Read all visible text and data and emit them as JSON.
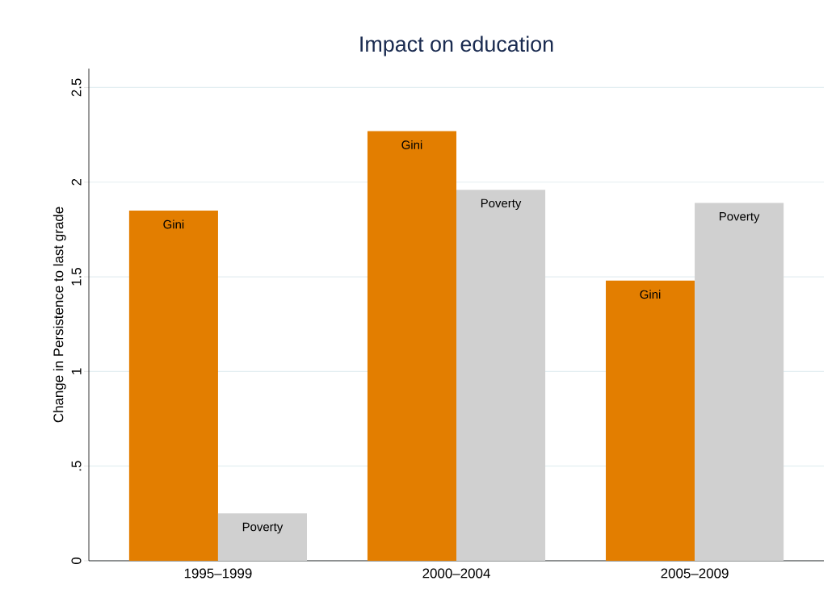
{
  "chart_data": {
    "type": "bar",
    "title": "Impact on education",
    "ylabel": "Change in Persistence to last grade",
    "categories": [
      "1995–1999",
      "2000–2004",
      "2005–2009"
    ],
    "series": [
      {
        "name": "Gini",
        "color": "#e37e00",
        "values": [
          1.85,
          2.27,
          1.48
        ]
      },
      {
        "name": "Poverty",
        "color": "#d0d0d0",
        "values": [
          0.25,
          1.96,
          1.89
        ]
      }
    ],
    "ylim": [
      0,
      2.6
    ],
    "yticks": [
      0,
      {
        "value": 0.5,
        "label": ".5"
      },
      1,
      1.5,
      2,
      2.5
    ],
    "grid": "y",
    "legend": false
  }
}
